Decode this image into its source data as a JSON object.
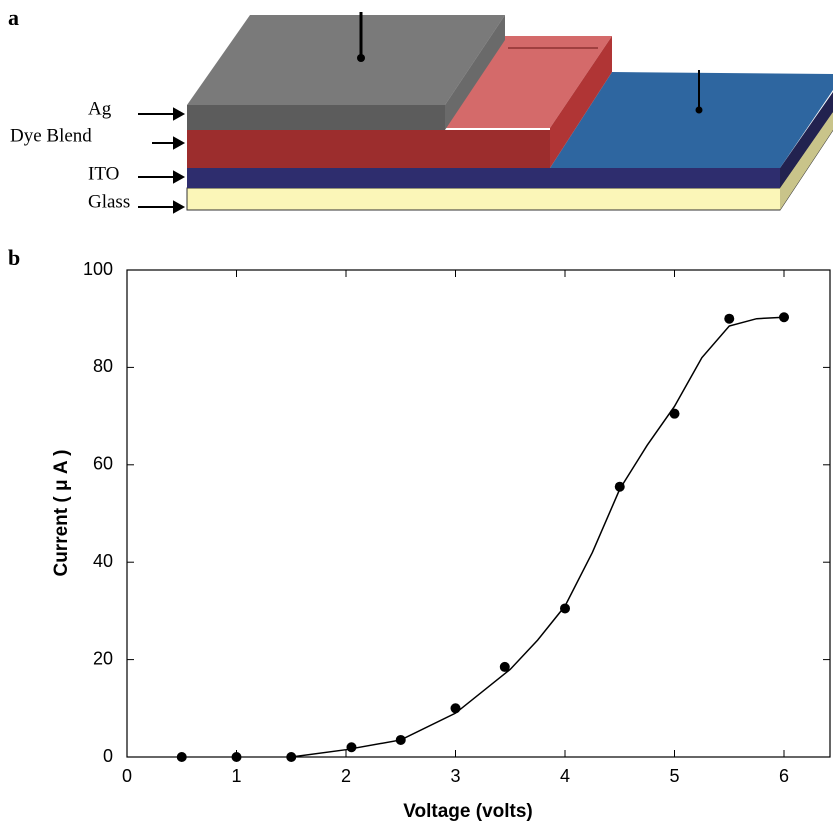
{
  "panels": [
    "a",
    "b"
  ],
  "diagram": {
    "layers": [
      "Ag",
      "Dye Blend",
      "ITO",
      "Glass"
    ]
  },
  "chart_data": {
    "type": "scatter",
    "xlabel": "Voltage (volts)",
    "ylabel": "Current ( μ A )",
    "xlim": [
      0,
      6.42
    ],
    "ylim": [
      0,
      100
    ],
    "xticks": [
      0,
      1,
      2,
      3,
      4,
      5,
      6
    ],
    "yticks": [
      0,
      20,
      40,
      60,
      80,
      100
    ],
    "grid": false,
    "series": [
      {
        "color": "#000000",
        "marker": true,
        "line": false,
        "x": [
          0.5,
          1,
          1.5,
          2.05,
          2.5,
          3,
          3.45,
          4,
          4.5,
          5,
          5.5,
          6
        ],
        "values": [
          0,
          0,
          0,
          2,
          3.5,
          10,
          18.5,
          30.5,
          55.5,
          70.5,
          90,
          90.3
        ]
      },
      {
        "color": "#000000",
        "marker": false,
        "line": true,
        "x": [
          1.5,
          2,
          2.5,
          3,
          3.5,
          3.75,
          4,
          4.25,
          4.5,
          4.75,
          5,
          5.25,
          5.5,
          5.75,
          6
        ],
        "values": [
          0,
          1.5,
          3.5,
          9,
          18,
          24,
          31,
          42,
          55,
          64,
          72,
          82,
          88.5,
          90,
          90.3
        ]
      }
    ]
  }
}
